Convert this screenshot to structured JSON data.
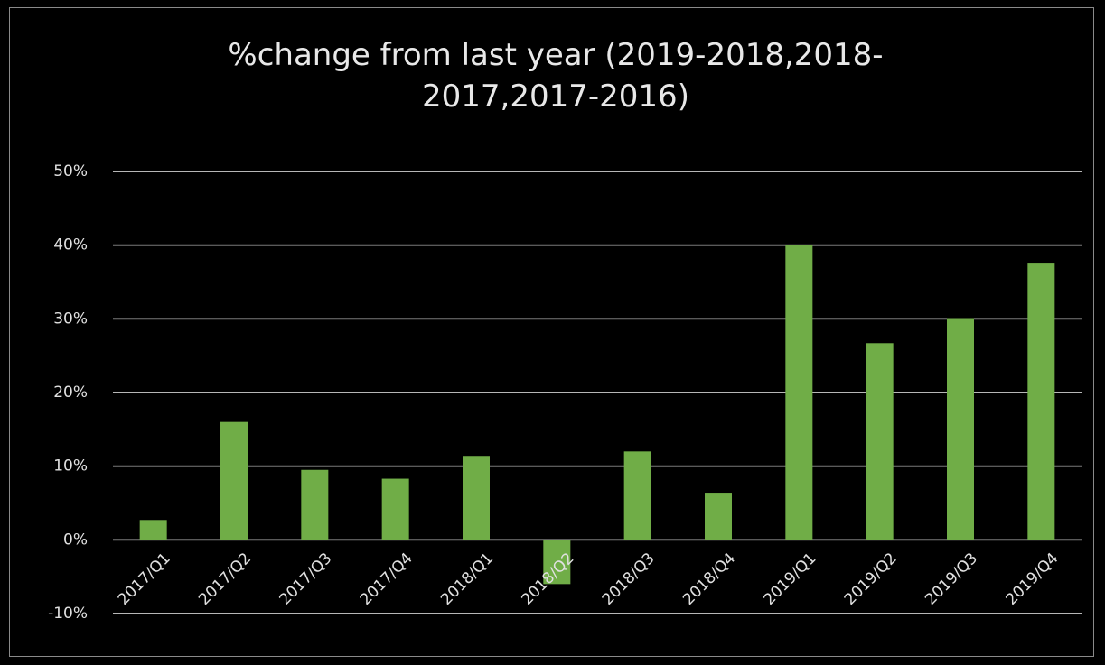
{
  "chart_data": {
    "type": "bar",
    "title": "%change from last year (2019-2018,2018-2017,2017-2016)",
    "categories": [
      "2017/Q1",
      "2017/Q2",
      "2017/Q3",
      "2017/Q4",
      "2018/Q1",
      "2018/Q2",
      "2018/Q3",
      "2018/Q4",
      "2019/Q1",
      "2019/Q2",
      "2019/Q3",
      "2019/Q4"
    ],
    "values": [
      2.7,
      16.0,
      9.5,
      8.3,
      11.4,
      -6.0,
      12.0,
      6.4,
      40.0,
      26.7,
      30.1,
      37.5
    ],
    "color": "#70ad47",
    "ylim": [
      -10,
      50
    ],
    "yticks": [
      {
        "value": -10,
        "label": "-10%"
      },
      {
        "value": 0,
        "label": "0%"
      },
      {
        "value": 10,
        "label": "10%"
      },
      {
        "value": 20,
        "label": "20%"
      },
      {
        "value": 30,
        "label": "30%"
      },
      {
        "value": 40,
        "label": "40%"
      },
      {
        "value": 50,
        "label": "50%"
      }
    ],
    "grid": true
  }
}
